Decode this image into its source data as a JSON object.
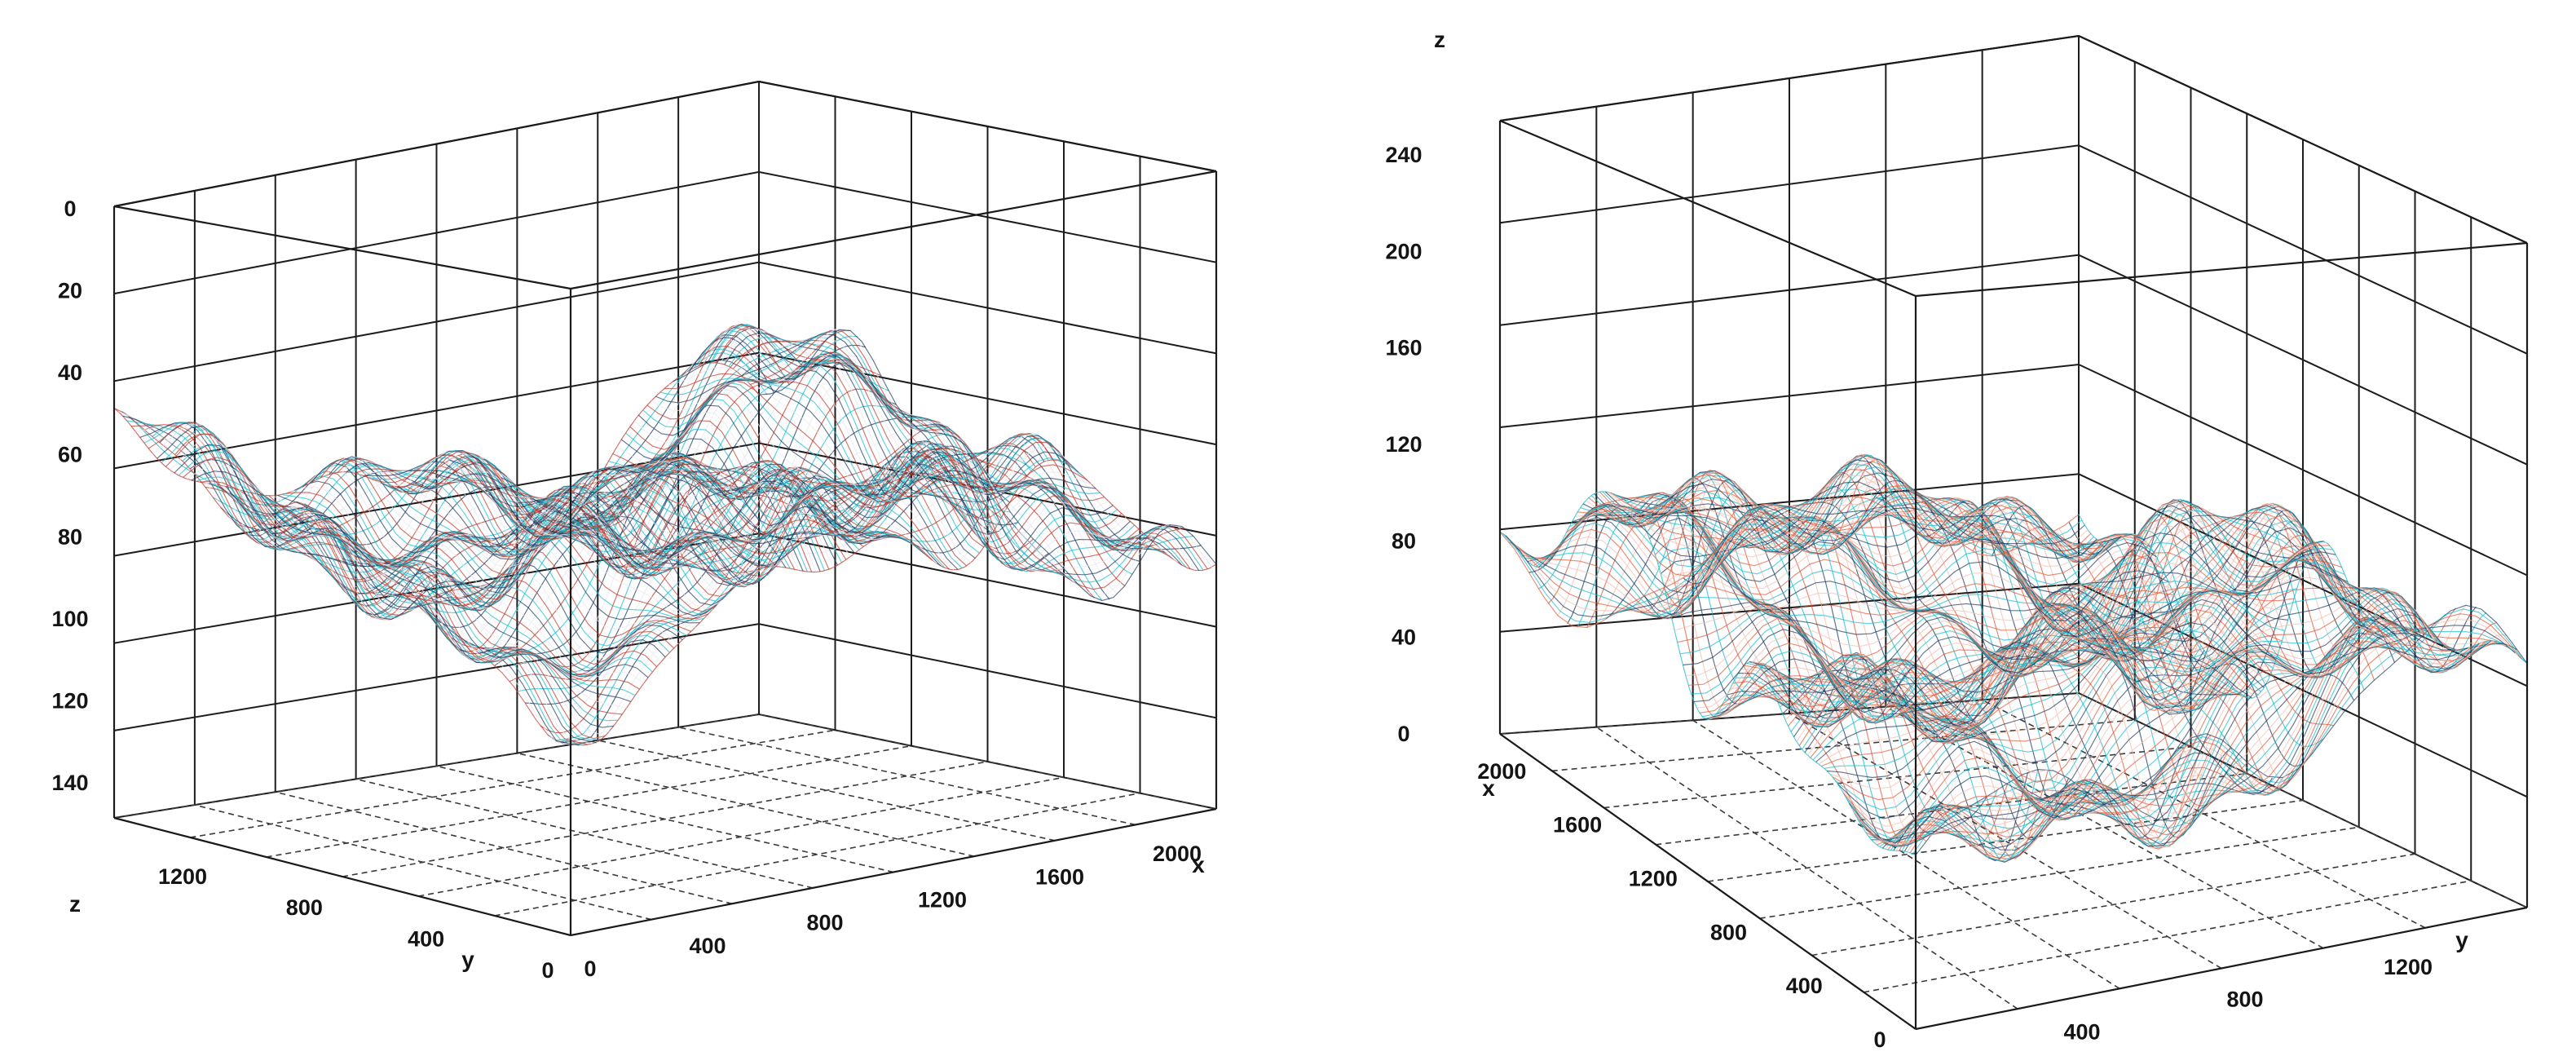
{
  "chart_data": [
    {
      "type": "surface",
      "xlabel": "x",
      "ylabel": "y",
      "zlabel": "z",
      "z_axis_reversed": true,
      "xlim": [
        0,
        2200
      ],
      "ylim": [
        0,
        1500
      ],
      "zlim": [
        0,
        150
      ],
      "x_ticks": [
        "0",
        "400",
        "800",
        "1200",
        "1600",
        "2000"
      ],
      "y_ticks": [
        "0",
        "400",
        "800",
        "1200"
      ],
      "z_ticks": [
        "0",
        "20",
        "40",
        "60",
        "80",
        "100",
        "120",
        "140"
      ],
      "surface_mean_z": 78,
      "surface_z_range": [
        55,
        112
      ],
      "colors": [
        "#c0392b",
        "#17becf",
        "#1f3a5f",
        "#e8e8f0"
      ],
      "grid": true
    },
    {
      "type": "surface",
      "xlabel": "x",
      "ylabel": "y",
      "zlabel": "z",
      "z_axis_reversed": false,
      "xlim": [
        0,
        2200
      ],
      "ylim": [
        0,
        1500
      ],
      "zlim": [
        0,
        260
      ],
      "x_ticks": [
        "0",
        "400",
        "800",
        "1200",
        "1600",
        "2000"
      ],
      "y_ticks": [
        "0",
        "400",
        "800",
        "1200"
      ],
      "z_ticks": [
        "0",
        "40",
        "80",
        "120",
        "160",
        "200",
        "240"
      ],
      "surface_mean_z": 80,
      "surface_z_range": [
        20,
        135
      ],
      "colors": [
        "#e25a3c",
        "#17becf",
        "#1f3a5f",
        "#f2c1b3"
      ],
      "grid": true
    }
  ]
}
